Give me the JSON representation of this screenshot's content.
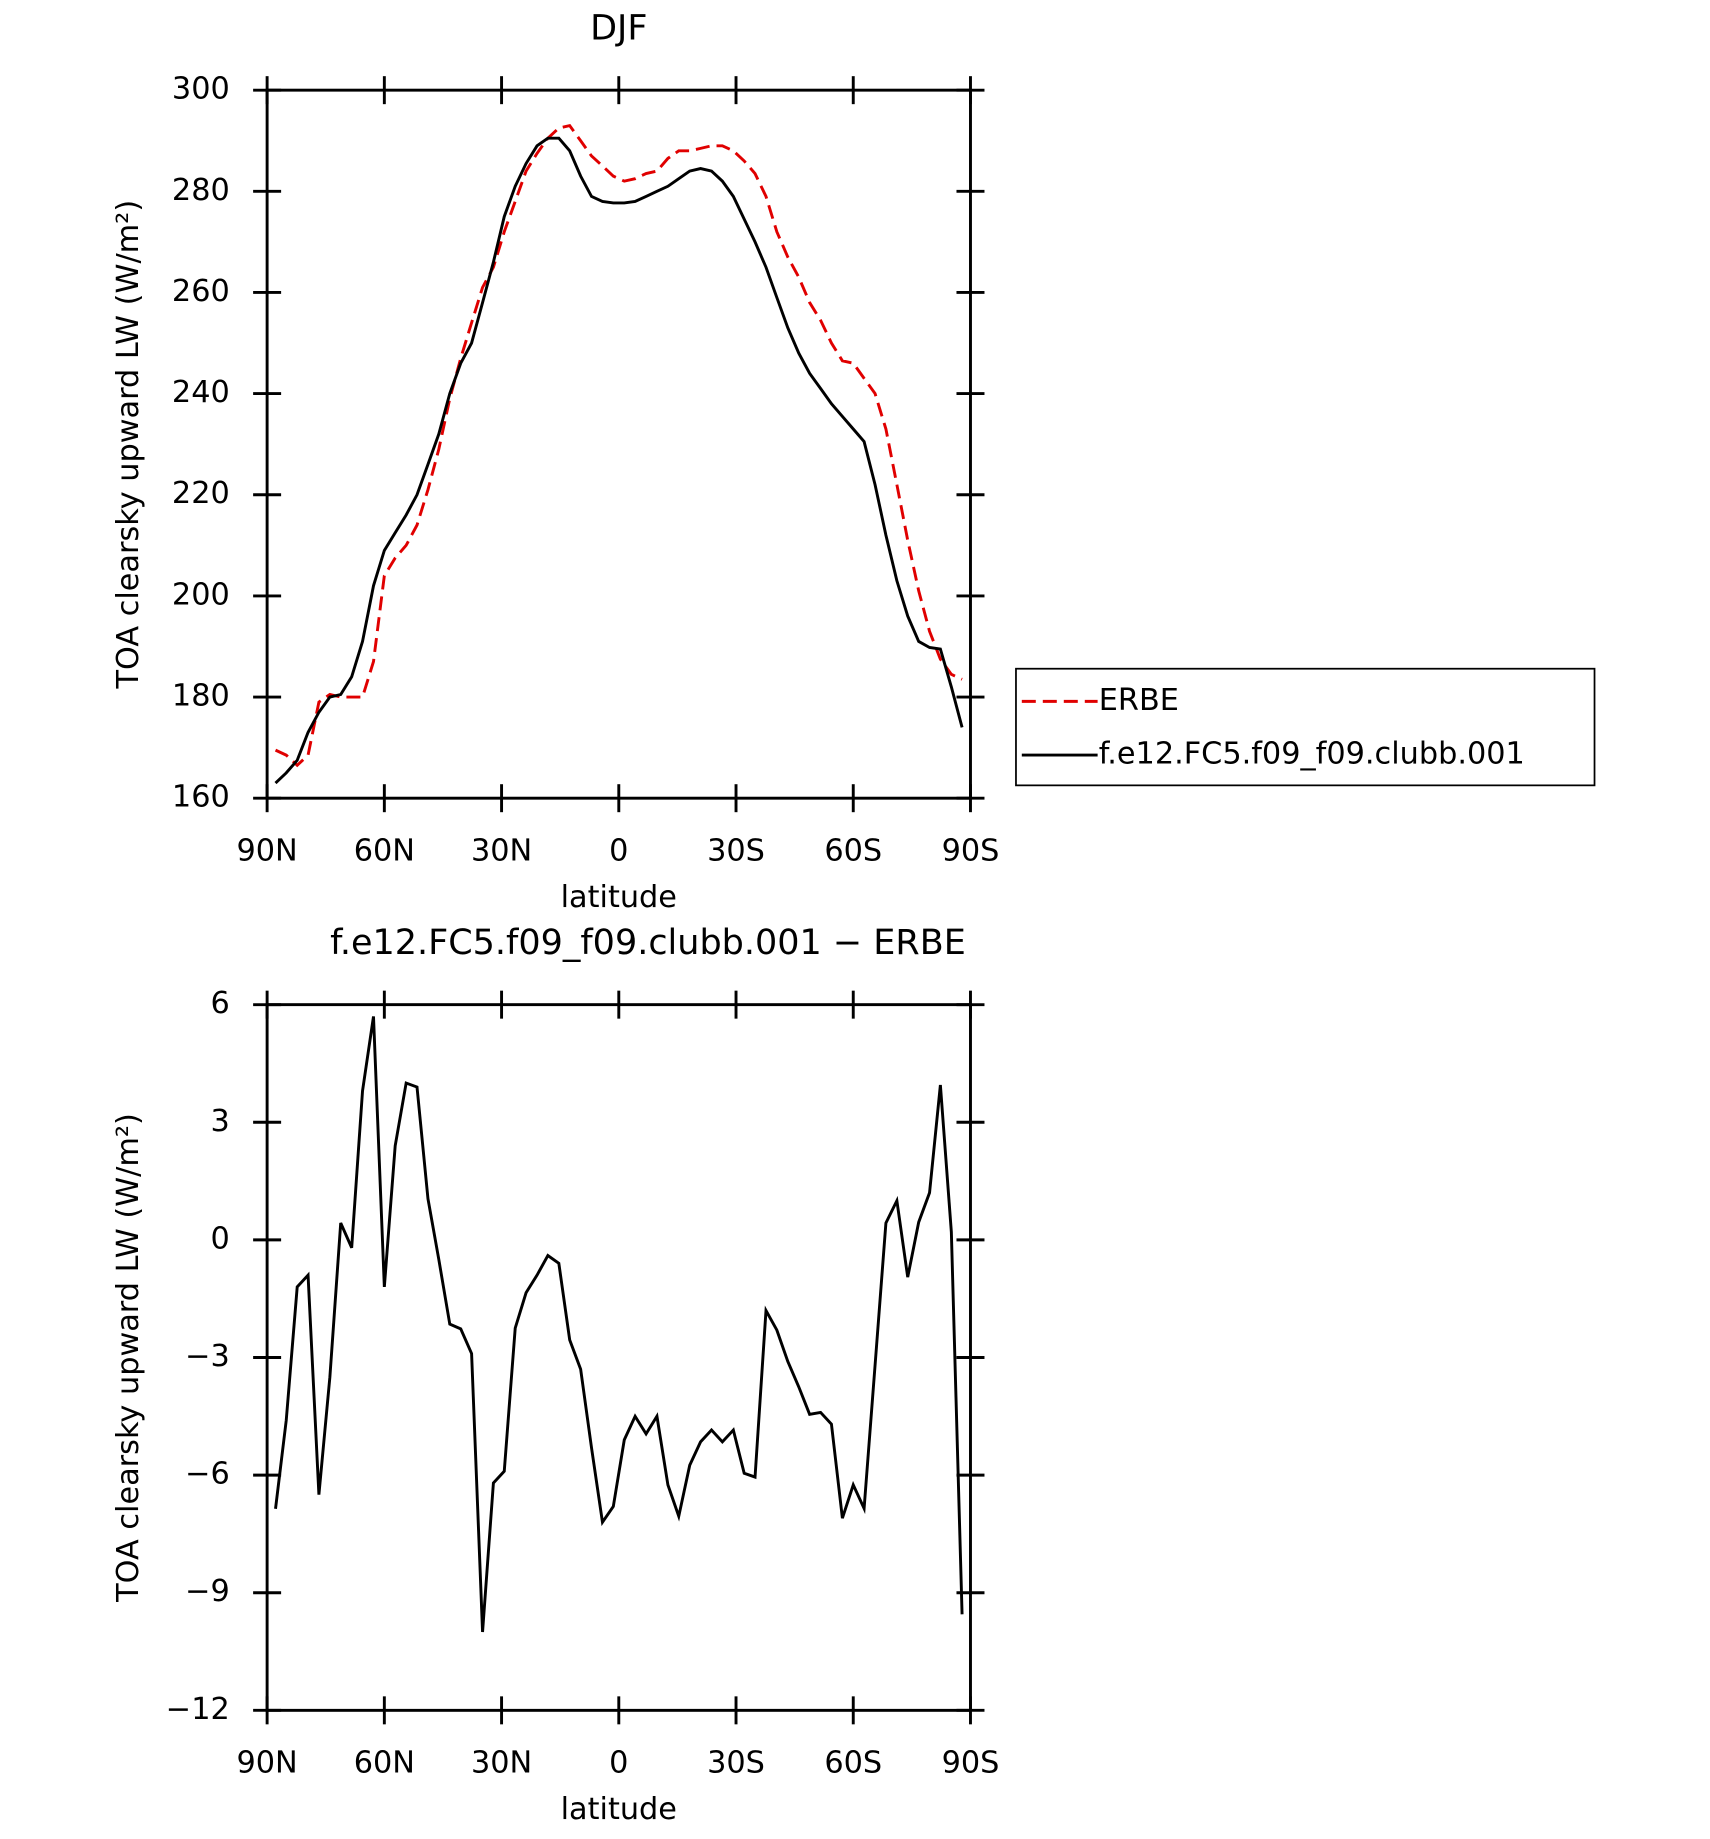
{
  "chart_data": [
    {
      "type": "line",
      "title": "DJF",
      "xlabel": "latitude",
      "ylabel": "TOA clearsky upward LW (W/m²)",
      "x": [
        87.86,
        85.1,
        82.31,
        79.53,
        76.74,
        73.95,
        71.16,
        68.37,
        65.58,
        62.79,
        60,
        57.21,
        54.42,
        51.63,
        48.84,
        46.05,
        43.25,
        40.46,
        37.67,
        34.88,
        32.09,
        29.3,
        26.51,
        23.72,
        20.93,
        18.14,
        15.35,
        12.56,
        9.77,
        6.98,
        4.19,
        1.4,
        -1.4,
        -4.19,
        -6.98,
        -9.77,
        -12.56,
        -15.35,
        -18.14,
        -20.93,
        -23.72,
        -26.51,
        -29.3,
        -32.09,
        -34.88,
        -37.67,
        -40.46,
        -43.25,
        -46.05,
        -48.84,
        -51.63,
        -54.42,
        -57.21,
        -60,
        -62.79,
        -65.58,
        -68.37,
        -71.16,
        -73.95,
        -76.74,
        -79.53,
        -82.31,
        -85.1,
        -87.86
      ],
      "series": [
        {
          "name": "ERBE",
          "color": "#e00000",
          "dash": true,
          "values": [
            169.5,
            168.5,
            166.5,
            168.5,
            179,
            180.5,
            180,
            180,
            180,
            187,
            204,
            207.5,
            210,
            214,
            221,
            229,
            239,
            247,
            254,
            261,
            265,
            272,
            278,
            284,
            287.5,
            290.5,
            292.5,
            293,
            290,
            287,
            285,
            283,
            282,
            282.5,
            283.5,
            284,
            286.5,
            288,
            288,
            288.5,
            289,
            289,
            288,
            286,
            283.5,
            279,
            272,
            267,
            263,
            258,
            254.5,
            250,
            246.5,
            246,
            243,
            240,
            233,
            222,
            211,
            201,
            193,
            187.5,
            184.5,
            183.5
          ]
        },
        {
          "name": "f.e12.FC5.f09_f09.clubb.001",
          "color": "#000000",
          "dash": false,
          "values": [
            163,
            165,
            167.5,
            173,
            177,
            180,
            180.5,
            184,
            191,
            202,
            209,
            212.5,
            216,
            220,
            226,
            232,
            240,
            246,
            250,
            258,
            266,
            275,
            281,
            285.5,
            289,
            290.5,
            290.5,
            288,
            283,
            279,
            278,
            277.7,
            277.7,
            278,
            279,
            280,
            281,
            282.5,
            284,
            284.5,
            284,
            282,
            279,
            274.5,
            270,
            265,
            259,
            253,
            248,
            244,
            241,
            238,
            235.5,
            233,
            230.5,
            222,
            212,
            203,
            196,
            191,
            189.8,
            189.5,
            182,
            174
          ]
        }
      ],
      "xlim": [
        90,
        -90
      ],
      "xticks": [
        {
          "value": 90,
          "label": "90N"
        },
        {
          "value": 60,
          "label": "60N"
        },
        {
          "value": 30,
          "label": "30N"
        },
        0,
        {
          "value": -30,
          "label": "30S"
        },
        {
          "value": -60,
          "label": "60S"
        },
        {
          "value": -90,
          "label": "90S"
        }
      ],
      "ylim": [
        160,
        300
      ],
      "yticks": [
        160,
        180,
        200,
        220,
        240,
        260,
        280,
        300
      ],
      "legend": "right"
    },
    {
      "type": "line",
      "title": "f.e12.FC5.f09_f09.clubb.001 − ERBE",
      "xlabel": "latitude",
      "ylabel": "TOA clearsky upward LW (W/m²)",
      "x": [
        87.86,
        85.1,
        82.31,
        79.53,
        76.74,
        73.95,
        71.16,
        68.37,
        65.58,
        62.79,
        60,
        57.21,
        54.42,
        51.63,
        48.84,
        46.05,
        43.25,
        40.46,
        37.67,
        34.88,
        32.09,
        29.3,
        26.51,
        23.72,
        20.93,
        18.14,
        15.35,
        12.56,
        9.77,
        6.98,
        4.19,
        1.4,
        -1.4,
        -4.19,
        -6.98,
        -9.77,
        -12.56,
        -15.35,
        -18.14,
        -20.93,
        -23.72,
        -26.51,
        -29.3,
        -32.09,
        -34.88,
        -37.67,
        -40.46,
        -43.25,
        -46.05,
        -48.84,
        -51.63,
        -54.42,
        -57.21,
        -60,
        -62.79,
        -65.58,
        -68.37,
        -71.16,
        -73.95,
        -76.74,
        -79.53,
        -82.31,
        -85.1,
        -87.86
      ],
      "values": [
        -6.86,
        -4.6,
        -1.2,
        -0.9,
        -6.5,
        -3.5,
        0.43,
        -0.2,
        3.8,
        5.7,
        -1.2,
        2.4,
        4.0,
        3.9,
        1.05,
        -0.5,
        -2.15,
        -2.27,
        -2.9,
        -10.0,
        -6.2,
        -5.9,
        -2.25,
        -1.35,
        -0.9,
        -0.4,
        -0.6,
        -2.55,
        -3.3,
        -5.3,
        -7.2,
        -6.8,
        -5.1,
        -4.5,
        -4.95,
        -4.5,
        -6.25,
        -7.05,
        -5.75,
        -5.15,
        -4.85,
        -5.15,
        -4.85,
        -5.95,
        -6.05,
        -1.8,
        -2.3,
        -3.1,
        -3.75,
        -4.45,
        -4.4,
        -4.7,
        -7.1,
        -6.25,
        -6.85,
        -3.2,
        0.43,
        1.0,
        -0.95,
        0.45,
        1.2,
        3.95,
        0.2,
        -9.55
      ],
      "color": "#000000",
      "xlim": [
        90,
        -90
      ],
      "xticks": [
        {
          "value": 90,
          "label": "90N"
        },
        {
          "value": 60,
          "label": "60N"
        },
        {
          "value": 30,
          "label": "30N"
        },
        0,
        {
          "value": -30,
          "label": "30S"
        },
        {
          "value": -60,
          "label": "60S"
        },
        {
          "value": -90,
          "label": "90S"
        }
      ],
      "ylim": [
        -12,
        6
      ],
      "yticks": [
        {
          "value": -12,
          "label": "−12"
        },
        {
          "value": -9,
          "label": "−9"
        },
        {
          "value": -6,
          "label": "−6"
        },
        {
          "value": -3,
          "label": "−3"
        },
        0,
        3,
        6
      ]
    }
  ]
}
